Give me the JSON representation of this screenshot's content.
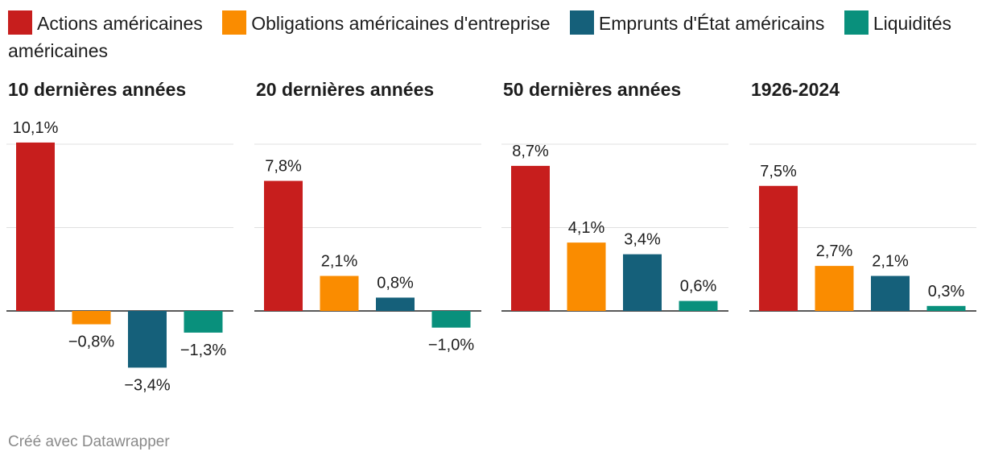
{
  "legend": [
    {
      "label": "Actions américaines",
      "color": "#c71e1d"
    },
    {
      "label": "Obligations américaines d'entreprise",
      "color": "#fa8c00"
    },
    {
      "label": "Emprunts d'État américains",
      "color": "#15607a"
    },
    {
      "label": "Liquidités américaines",
      "color": "#09907c"
    }
  ],
  "footer": "Créé avec Datawrapper",
  "chart_data": [
    {
      "type": "bar",
      "title": "10 dernières années",
      "categories": [
        "Actions américaines",
        "Obligations américaines d'entreprise",
        "Emprunts d'État américains",
        "Liquidités américaines"
      ],
      "values": [
        10.1,
        -0.8,
        -3.4,
        -1.3
      ],
      "labels": [
        "10,1%",
        "−0,8%",
        "−3,4%",
        "−1,3%"
      ],
      "gridlines": [
        0,
        5,
        10
      ],
      "ylim": [
        -5,
        10.5
      ]
    },
    {
      "type": "bar",
      "title": "20 dernières années",
      "categories": [
        "Actions américaines",
        "Obligations américaines d'entreprise",
        "Emprunts d'État américains",
        "Liquidités américaines"
      ],
      "values": [
        7.8,
        2.1,
        0.8,
        -1.0
      ],
      "labels": [
        "7,8%",
        "2,1%",
        "0,8%",
        "−1,0%"
      ],
      "gridlines": [
        0,
        5,
        10
      ],
      "ylim": [
        -5,
        10.5
      ]
    },
    {
      "type": "bar",
      "title": "50 dernières années",
      "categories": [
        "Actions américaines",
        "Obligations américaines d'entreprise",
        "Emprunts d'État américains",
        "Liquidités américaines"
      ],
      "values": [
        8.7,
        4.1,
        3.4,
        0.6
      ],
      "labels": [
        "8,7%",
        "4,1%",
        "3,4%",
        "0,6%"
      ],
      "gridlines": [
        0,
        5,
        10
      ],
      "ylim": [
        -5,
        10.5
      ]
    },
    {
      "type": "bar",
      "title": "1926-2024",
      "categories": [
        "Actions américaines",
        "Obligations américaines d'entreprise",
        "Emprunts d'État américains",
        "Liquidités américaines"
      ],
      "values": [
        7.5,
        2.7,
        2.1,
        0.3
      ],
      "labels": [
        "7,5%",
        "2,7%",
        "2,1%",
        "0,3%"
      ],
      "gridlines": [
        0,
        5,
        10
      ],
      "ylim": [
        -5,
        10.5
      ]
    }
  ]
}
